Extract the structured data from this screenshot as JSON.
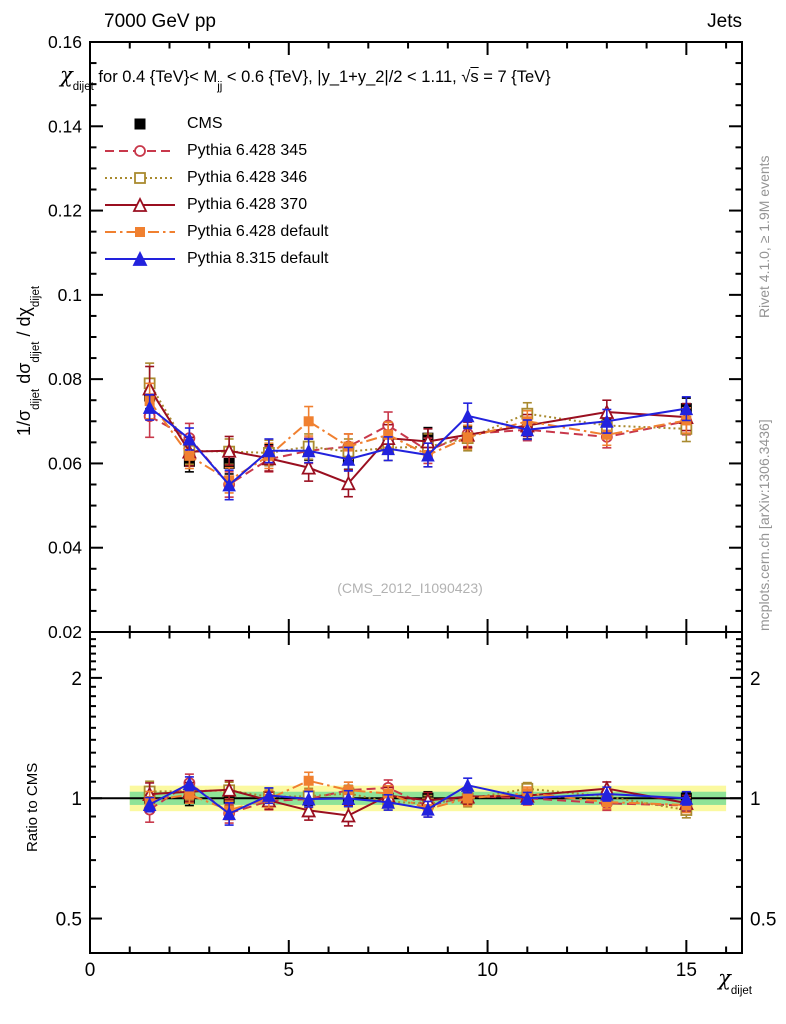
{
  "header": {
    "left": "7000 GeV pp",
    "right": "Jets"
  },
  "title": {
    "chi": "χ",
    "chi_sub": "dijet",
    "seg1": " for 0.4 {TeV}< M",
    "m_sub": "jj",
    "seg2": " < 0.6 {TeV}, |y_1+y_2|/2 < 1.11, ",
    "sqrt": "√",
    "sqrt_arg": "s",
    "seg3": " = 7 {TeV}"
  },
  "axes": {
    "y_main_label": {
      "part1": "1/σ",
      "sub1": "dijet",
      "part2": "  dσ",
      "sub2": "dijet",
      "part3": " / dχ",
      "sub3": "dijet"
    },
    "x_label": {
      "chi": "χ",
      "sub": "dijet"
    },
    "ratio_label": "Ratio to CMS"
  },
  "watermark": "(CMS_2012_I1090423)",
  "side_notes": {
    "top": "Rivet 4.1.0, ≥ 1.9M events",
    "bottom": "mcplots.cern.ch [arXiv:1306.3436]"
  },
  "chart_data": {
    "type": "line",
    "title": "chi_dijet for 0.4 TeV < Mjj < 0.6 TeV, |y1+y2|/2 < 1.11, sqrt(s) = 7 TeV",
    "xlabel": "chi_dijet",
    "ylabel": "1/sigma_dijet dsigma_dijet/dchi_dijet",
    "xlim": [
      0,
      16.4
    ],
    "x": [
      1.5,
      2.5,
      3.5,
      4.5,
      5.5,
      6.5,
      7.5,
      8.5,
      9.5,
      11,
      13,
      15
    ],
    "x_ticks": [
      {
        "v": 0,
        "label": "0"
      },
      {
        "v": 5,
        "label": "5"
      },
      {
        "v": 10,
        "label": "10"
      },
      {
        "v": 15,
        "label": "15"
      }
    ],
    "x_minor_step": 1,
    "main_panel": {
      "ylim": [
        0.02,
        0.16
      ],
      "y_ticks": [
        {
          "v": 0.02,
          "label": "0.02"
        },
        {
          "v": 0.04,
          "label": "0.04"
        },
        {
          "v": 0.06,
          "label": "0.06"
        },
        {
          "v": 0.08,
          "label": "0.08"
        },
        {
          "v": 0.1,
          "label": "0.1"
        },
        {
          "v": 0.12,
          "label": "0.12"
        },
        {
          "v": 0.14,
          "label": "0.14"
        },
        {
          "v": 0.16,
          "label": "0.16"
        }
      ],
      "y_minor_step": 0.005,
      "grid": false
    },
    "ratio_panel": {
      "scale": "log",
      "ylim": [
        0.41,
        2.605
      ],
      "y_ticks": [
        {
          "v": 0.5,
          "label": "0.5"
        },
        {
          "v": 1,
          "label": "1"
        },
        {
          "v": 2,
          "label": "2"
        }
      ],
      "y_minor": [
        0.6,
        0.7,
        0.8,
        0.9,
        1.1,
        1.2,
        1.3,
        1.4,
        1.5,
        1.6,
        1.7,
        1.8,
        1.9,
        2.1,
        2.2,
        2.3,
        2.4,
        2.5
      ],
      "reference_line": 1,
      "bands": [
        {
          "color": "#fbf9a0",
          "lo": 0.928,
          "hi": 1.075,
          "x_from": 1,
          "x_to": 16
        },
        {
          "color": "#8fe397",
          "lo": 0.962,
          "hi": 1.038,
          "x_from": 1,
          "x_to": 16
        }
      ]
    },
    "series": [
      {
        "name": "CMS",
        "role": "data",
        "color": "#000000",
        "marker": "square-filled",
        "line": "none",
        "values": [
          0.076,
          0.0605,
          0.06,
          0.062,
          0.0633,
          0.0611,
          0.065,
          0.066,
          0.0662,
          0.068,
          0.0683,
          0.073
        ],
        "errors": [
          0.003,
          0.0025,
          0.0025,
          0.0025,
          0.0025,
          0.0025,
          0.0025,
          0.0025,
          0.0025,
          0.0022,
          0.0022,
          0.0025
        ]
      },
      {
        "name": "Pythia 6.428 345",
        "role": "mc",
        "color": "#c8384b",
        "marker": "circle-open",
        "line": "dashed",
        "values": [
          0.0712,
          0.066,
          0.055,
          0.061,
          0.063,
          0.064,
          0.069,
          0.063,
          0.067,
          0.068,
          0.0663,
          0.07
        ],
        "errors": [
          0.005,
          0.0035,
          0.003,
          0.003,
          0.003,
          0.003,
          0.0032,
          0.003,
          0.003,
          0.0026,
          0.0026,
          0.0032
        ]
      },
      {
        "name": "Pythia 6.428 346",
        "role": "mc",
        "color": "#a98a2f",
        "marker": "square-open",
        "line": "dotted",
        "values": [
          0.079,
          0.063,
          0.0628,
          0.0625,
          0.064,
          0.0628,
          0.0637,
          0.064,
          0.066,
          0.0718,
          0.069,
          0.0682
        ],
        "errors": [
          0.0048,
          0.0032,
          0.003,
          0.003,
          0.003,
          0.003,
          0.003,
          0.003,
          0.003,
          0.0026,
          0.0026,
          0.003
        ]
      },
      {
        "name": "Pythia 6.428 370",
        "role": "mc",
        "color": "#9a0f20",
        "marker": "triangle-open",
        "line": "solid",
        "values": [
          0.0778,
          0.0628,
          0.063,
          0.0612,
          0.059,
          0.0553,
          0.066,
          0.0652,
          0.0668,
          0.069,
          0.0722,
          0.071
        ],
        "errors": [
          0.0052,
          0.0034,
          0.0034,
          0.003,
          0.0032,
          0.0032,
          0.0032,
          0.003,
          0.003,
          0.0026,
          0.0028,
          0.0032
        ]
      },
      {
        "name": "Pythia 6.428 default",
        "role": "mc",
        "color": "#f08030",
        "marker": "square-filled",
        "line": "dashdot",
        "values": [
          0.0748,
          0.0618,
          0.056,
          0.0618,
          0.07,
          0.064,
          0.0668,
          0.062,
          0.0662,
          0.07,
          0.0668,
          0.0702
        ],
        "errors": [
          0.0042,
          0.003,
          0.003,
          0.003,
          0.0035,
          0.003,
          0.003,
          0.0028,
          0.0028,
          0.0025,
          0.0025,
          0.003
        ]
      },
      {
        "name": "Pythia 8.315 default",
        "role": "mc",
        "color": "#2222dd",
        "marker": "triangle-filled",
        "line": "solid",
        "values": [
          0.0733,
          0.0658,
          0.0549,
          0.063,
          0.063,
          0.061,
          0.0635,
          0.062,
          0.0713,
          0.068,
          0.07,
          0.073
        ],
        "errors": [
          0.003,
          0.0026,
          0.0035,
          0.0028,
          0.0028,
          0.0028,
          0.0028,
          0.0028,
          0.003,
          0.0023,
          0.0028,
          0.0028
        ]
      }
    ]
  }
}
